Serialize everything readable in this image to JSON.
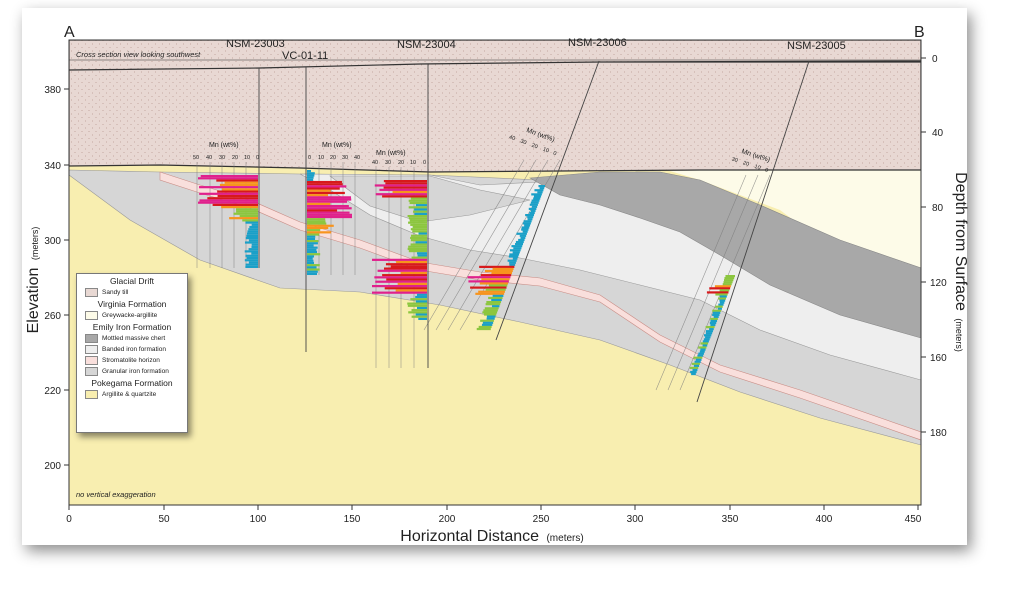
{
  "section": {
    "end_a": "A",
    "end_b": "B",
    "view_note": "Cross section view looking southwest",
    "exaggeration_note": "no vertical exaggeration"
  },
  "axes": {
    "x_label": "Horizontal Distance",
    "x_unit": "(meters)",
    "x_ticks": [
      "0",
      "50",
      "100",
      "150",
      "200",
      "250",
      "300",
      "350",
      "400",
      "450"
    ],
    "y_left_label": "Elevation",
    "y_left_unit": "(meters)",
    "y_left_ticks": [
      "380",
      "340",
      "300",
      "260",
      "220",
      "200"
    ],
    "y_right_label": "Depth from Surface",
    "y_right_unit": "(meters)",
    "y_right_ticks": [
      "0",
      "40",
      "80",
      "120",
      "160",
      "180"
    ]
  },
  "drillholes": [
    {
      "name": "NSM-23003",
      "mn_label": "Mn (wt%)",
      "mn_ticks": [
        "50",
        "40",
        "30",
        "20",
        "10",
        "0"
      ]
    },
    {
      "name": "VC-01-11",
      "mn_label": "Mn (wt%)",
      "mn_ticks": [
        "0",
        "10",
        "20",
        "30",
        "40"
      ]
    },
    {
      "name": "NSM-23004",
      "mn_label": "Mn (wt%)",
      "mn_ticks": [
        "40",
        "30",
        "20",
        "10",
        "0"
      ]
    },
    {
      "name": "NSM-23006",
      "mn_label": "Mn (wt%)",
      "mn_ticks": [
        "40",
        "30",
        "20",
        "10",
        "0"
      ]
    },
    {
      "name": "NSM-23005",
      "mn_label": "Mn (wt%)",
      "mn_ticks": [
        "30",
        "20",
        "10",
        "0"
      ]
    }
  ],
  "legend": {
    "groups": [
      {
        "title": "Glacial Drift",
        "items": [
          {
            "label": "Sandy till",
            "color": "#e8d8d3"
          }
        ]
      },
      {
        "title": "Virginia Formation",
        "items": [
          {
            "label": "Greywacke-argillite",
            "color": "#fdfbe8"
          }
        ]
      },
      {
        "title": "Emily Iron Formation",
        "items": [
          {
            "label": "Mottled massive chert",
            "color": "#a8a8a8"
          },
          {
            "label": "Banded iron formation",
            "color": "#eeeeee"
          },
          {
            "label": "Stromatolite horizon",
            "color": "#f9dfdc"
          },
          {
            "label": "Granular iron formation",
            "color": "#d6d6d6"
          }
        ]
      },
      {
        "title": "Pokegama Formation",
        "items": [
          {
            "label": "Argillite & quartzite",
            "color": "#f8eeb0"
          }
        ]
      }
    ]
  },
  "colors": {
    "till": "#e8d8d3",
    "virginia": "#fdfbe8",
    "chert": "#a8a8a8",
    "banded": "#eeeeee",
    "stromatolite": "#f9dfdc",
    "granular": "#d6d6d6",
    "pokegama": "#f8eeb0",
    "mn_low": "#1aa0c8",
    "mn_mid": "#8cc63f",
    "mn_high1": "#f7941d",
    "mn_high2": "#d7191c",
    "mn_high3": "#e0208c"
  }
}
